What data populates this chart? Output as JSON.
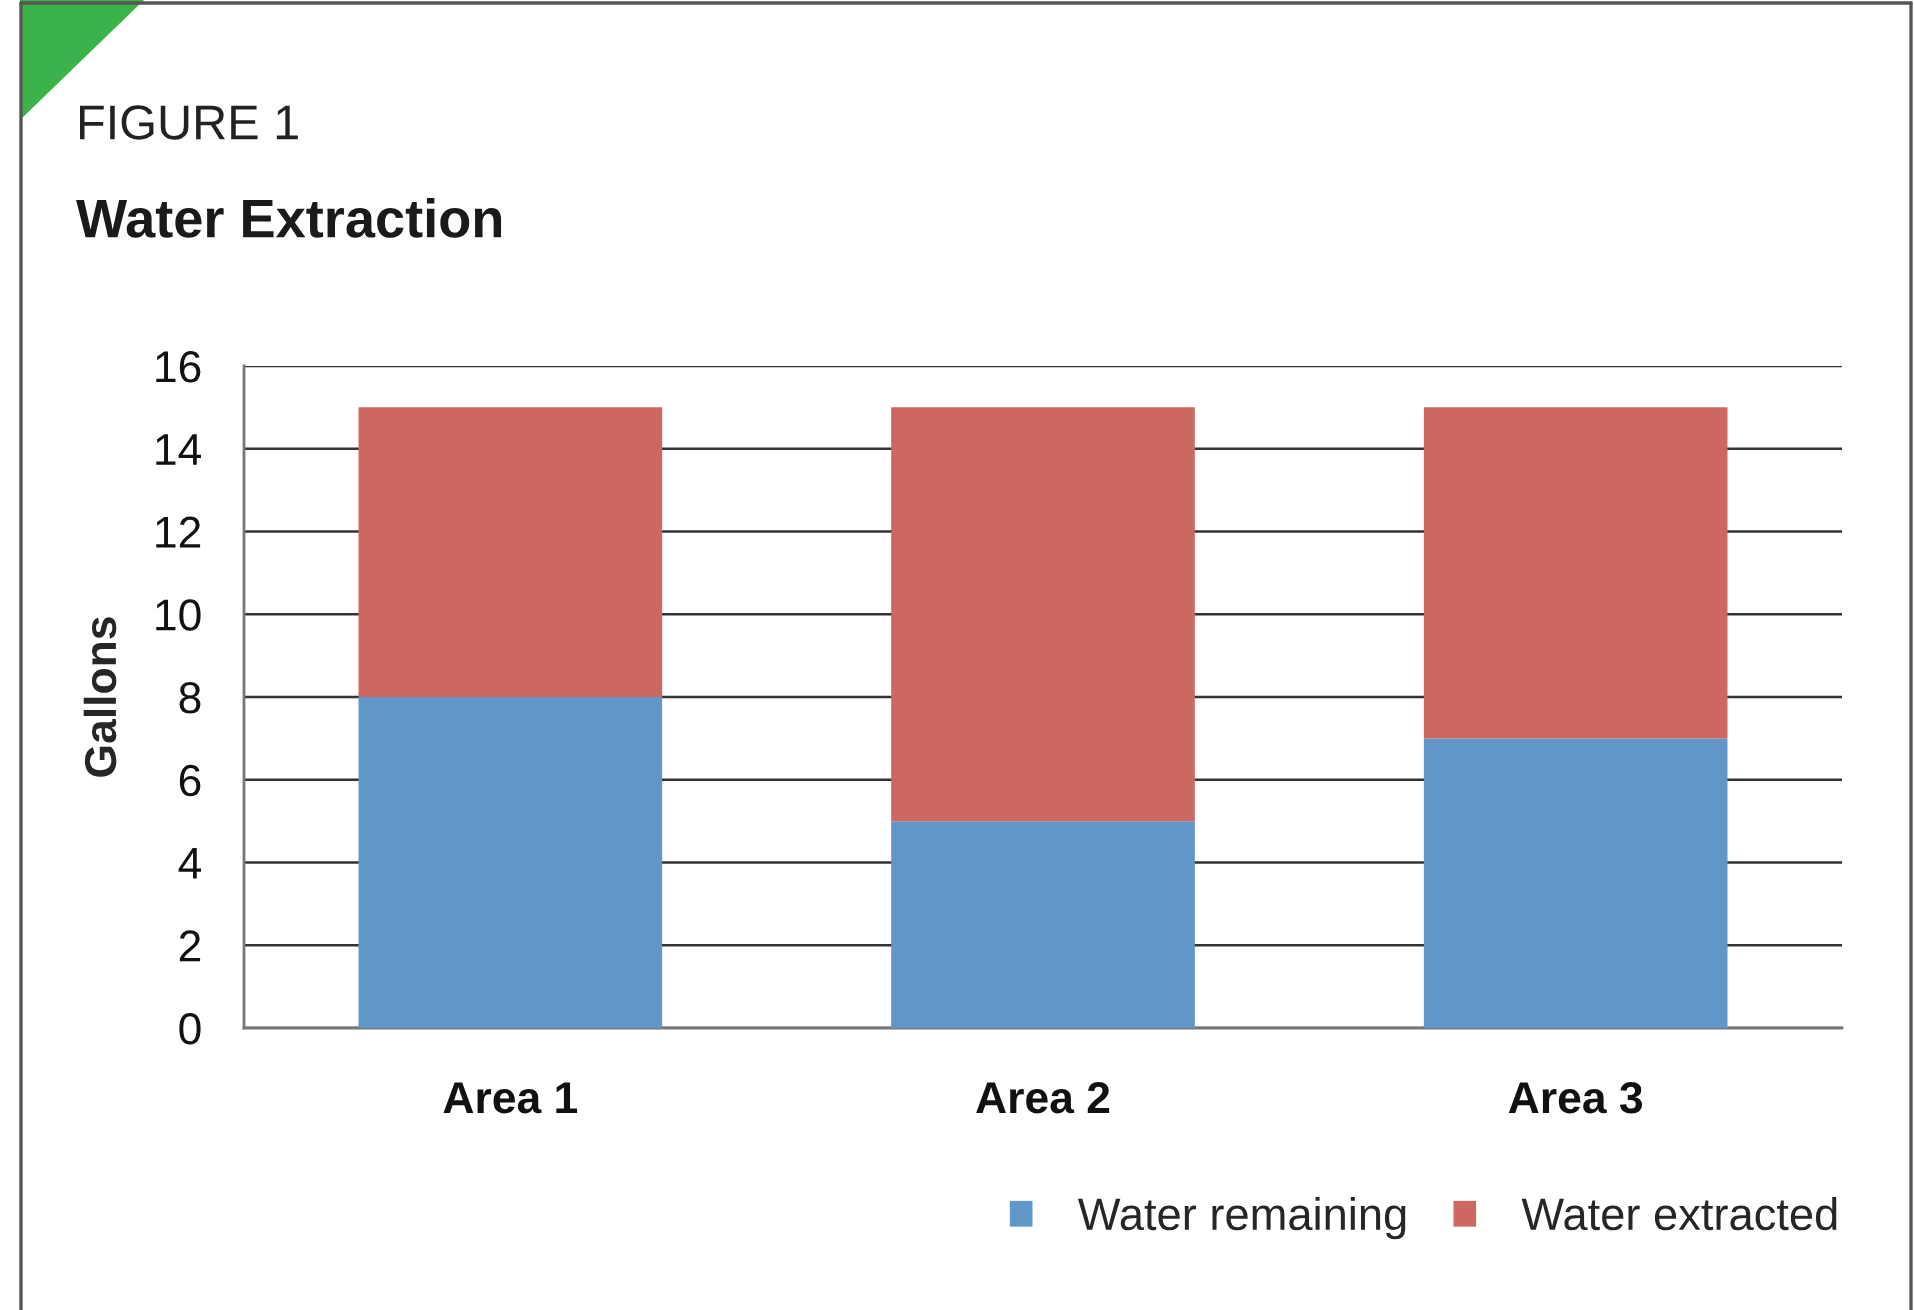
{
  "chart_data": {
    "type": "bar",
    "title": "Water Extraction",
    "annotations": [
      "FIGURE 1"
    ],
    "ylabel": "Gallons",
    "categories": [
      "Area 1",
      "Area 2",
      "Area 3"
    ],
    "series": [
      {
        "name": "Water remaining",
        "color": "#6096c8",
        "values": [
          8,
          5,
          7
        ]
      },
      {
        "name": "Water extracted",
        "color": "#cd6861",
        "values": [
          7,
          10,
          8
        ]
      }
    ],
    "stacked": true,
    "ylim": [
      0,
      16
    ],
    "yticks": [
      0,
      2,
      4,
      6,
      8,
      10,
      12,
      14,
      16
    ],
    "grid": "y",
    "legend": "bottom right"
  }
}
